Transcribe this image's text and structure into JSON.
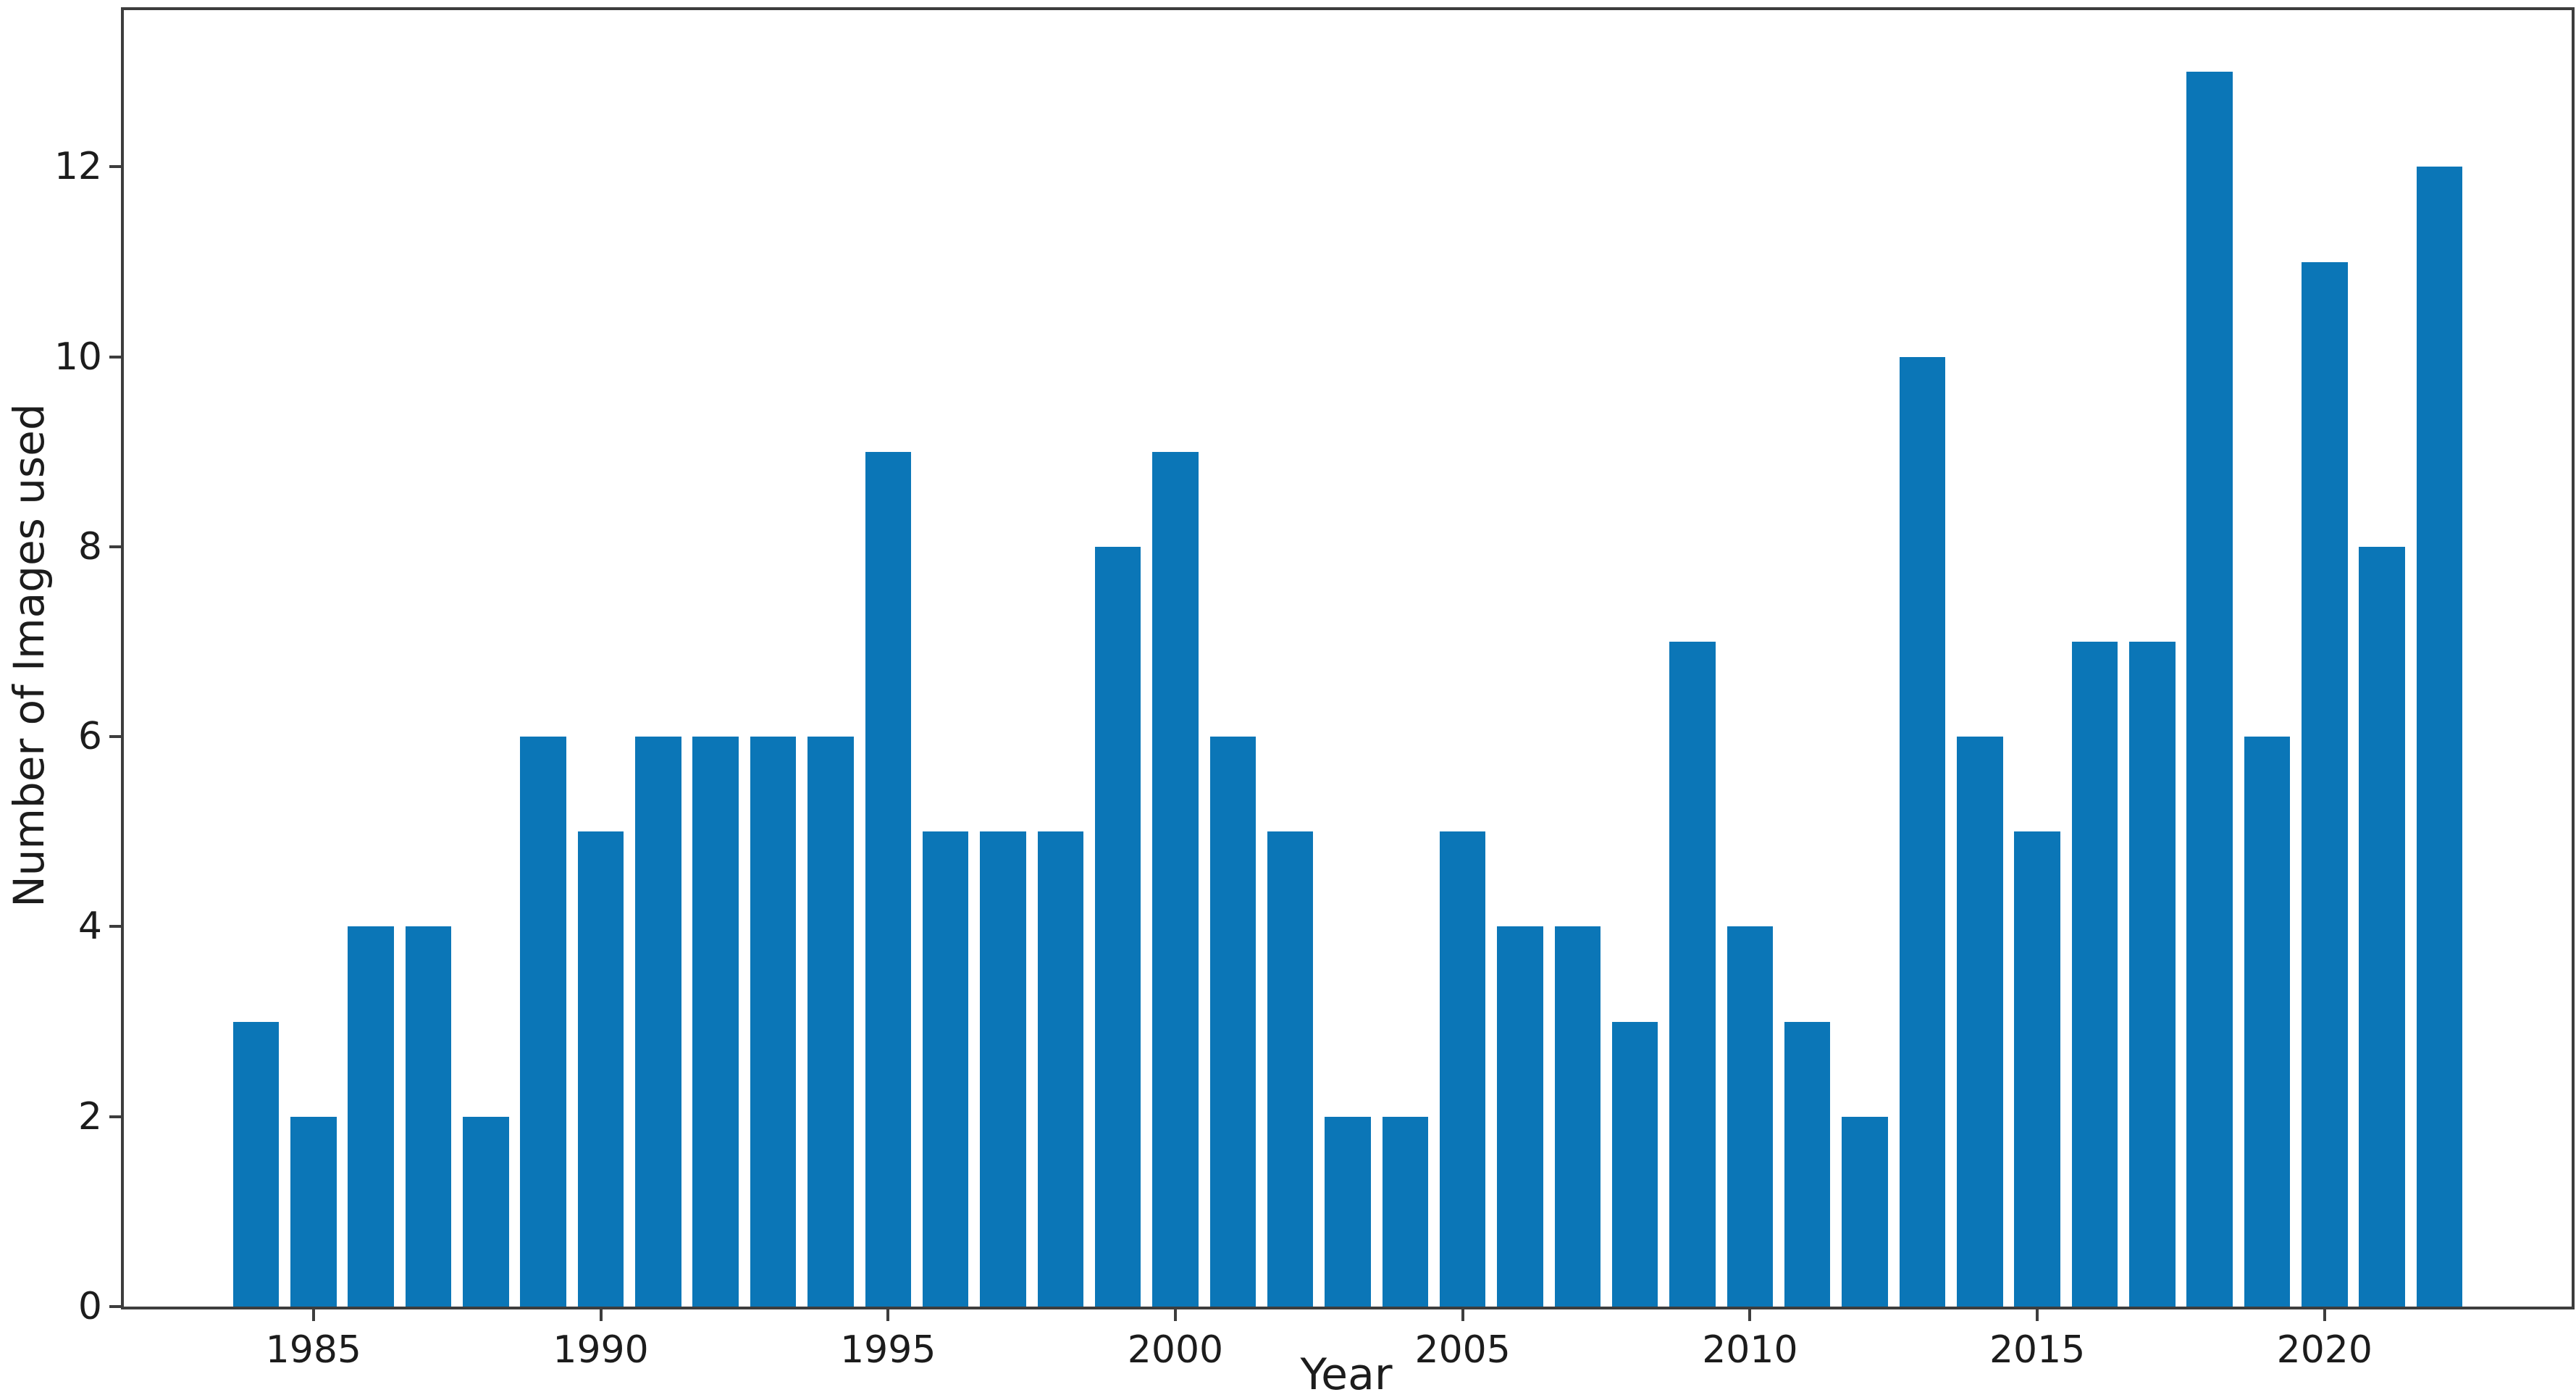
{
  "figure": {
    "background_color": "#ffffff",
    "bar_color": "#0b76b7",
    "spine_color": "#3d3d3d",
    "text_color": "#1c1c1c"
  },
  "chart_data": {
    "type": "bar",
    "title": "",
    "xlabel": "Year",
    "ylabel": "Number of Images used",
    "categories": [
      1984,
      1985,
      1986,
      1987,
      1988,
      1989,
      1990,
      1991,
      1992,
      1993,
      1994,
      1995,
      1996,
      1997,
      1998,
      1999,
      2000,
      2001,
      2002,
      2003,
      2004,
      2005,
      2006,
      2007,
      2008,
      2009,
      2010,
      2011,
      2012,
      2013,
      2014,
      2015,
      2016,
      2017,
      2018,
      2019,
      2020,
      2021,
      2022
    ],
    "values": [
      3,
      2,
      4,
      4,
      2,
      6,
      5,
      6,
      6,
      6,
      6,
      9,
      5,
      5,
      5,
      8,
      9,
      6,
      5,
      2,
      2,
      5,
      4,
      4,
      3,
      7,
      4,
      3,
      2,
      10,
      6,
      5,
      7,
      7,
      13,
      6,
      11,
      8,
      12
    ],
    "x_ticks": [
      1985,
      1990,
      1995,
      2000,
      2005,
      2010,
      2015,
      2020
    ],
    "y_ticks": [
      0,
      2,
      4,
      6,
      8,
      10,
      12
    ],
    "xlim": [
      1981.7,
      2024.3
    ],
    "ylim": [
      0,
      13.65
    ],
    "bar_width": 0.8,
    "grid": false,
    "legend_position": "none"
  }
}
